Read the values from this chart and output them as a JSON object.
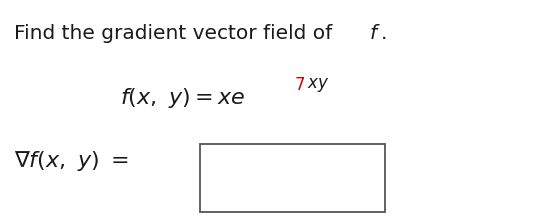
{
  "bg_color": "#ffffff",
  "text_color": "#1a1a1a",
  "red_color": "#cc0000",
  "title_fontsize": 14.5,
  "formula_fontsize": 15,
  "gradient_fontsize": 15
}
